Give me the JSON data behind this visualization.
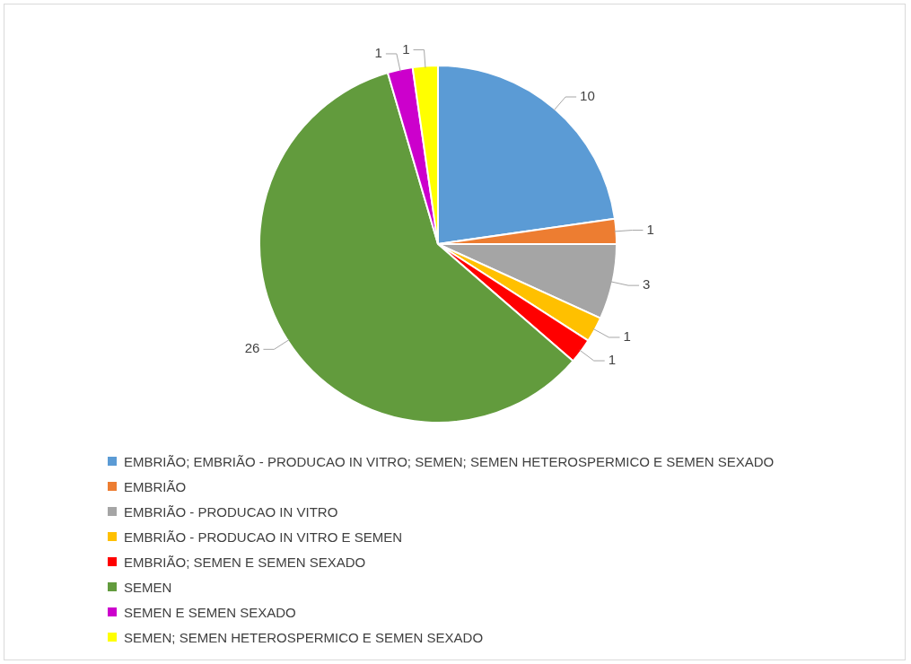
{
  "chart_data": {
    "type": "pie",
    "categories": [
      "EMBRIÃO; EMBRIÃO - PRODUCAO IN VITRO; SEMEN; SEMEN HETEROSPERMICO E SEMEN SEXADO",
      "EMBRIÃO",
      "EMBRIÃO - PRODUCAO IN VITRO",
      "EMBRIÃO - PRODUCAO IN VITRO E SEMEN",
      "EMBRIÃO; SEMEN E SEMEN SEXADO",
      "SEMEN",
      "SEMEN E SEMEN SEXADO",
      "SEMEN; SEMEN HETEROSPERMICO E SEMEN SEXADO"
    ],
    "values": [
      10,
      1,
      3,
      1,
      1,
      26,
      1,
      1
    ],
    "colors": [
      "#5b9bd5",
      "#ed7d31",
      "#a5a5a5",
      "#ffc000",
      "#ff0000",
      "#629b3d",
      "#cc00cc",
      "#ffff00"
    ],
    "data_labels": true,
    "legend": "bottom"
  }
}
